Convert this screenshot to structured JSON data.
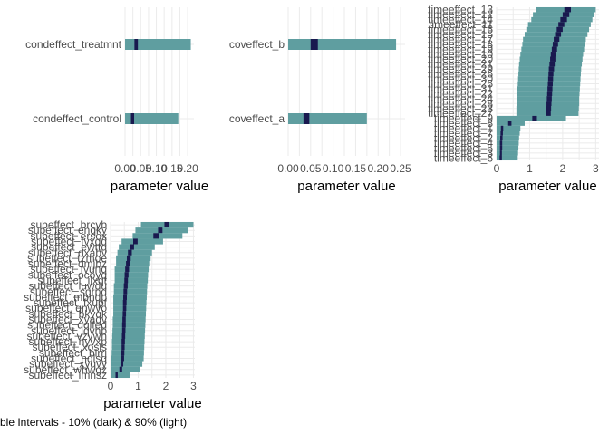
{
  "caption": "ble Intervals - 10% (dark) & 90% (light)",
  "colors": {
    "outer": "#5f9ea0",
    "inner": "#19194f",
    "grid": "#ebebeb",
    "text": "#4d4d4d"
  },
  "chart_data": [
    {
      "type": "interval",
      "panel": "condeffect",
      "xlabel": "parameter value",
      "xlim": [
        0,
        0.22
      ],
      "xticks": [
        0,
        0.05,
        0.1,
        0.15,
        0.2
      ],
      "xtick_labels": [
        "0.00",
        "0.05",
        "0.10",
        "0.15",
        "0.20"
      ],
      "grid": true,
      "items": [
        {
          "label": "condeffect_treatmnt",
          "outer": [
            0.0,
            0.21
          ],
          "inner": [
            0.03,
            0.041
          ],
          "median": 0.036
        },
        {
          "label": "condeffect_control",
          "outer": [
            0.0,
            0.17
          ],
          "inner": [
            0.019,
            0.029
          ],
          "median": 0.024
        }
      ]
    },
    {
      "type": "interval",
      "panel": "coveffect",
      "xlabel": "parameter value",
      "xlim": [
        0,
        0.26
      ],
      "xticks": [
        0,
        0.05,
        0.1,
        0.15,
        0.2,
        0.25
      ],
      "xtick_labels": [
        "0.00",
        "0.05",
        "0.10",
        "0.15",
        "0.20",
        "0.25"
      ],
      "grid": true,
      "items": [
        {
          "label": "coveffect_b",
          "outer": [
            0.0,
            0.24
          ],
          "inner": [
            0.05,
            0.066
          ],
          "median": 0.058
        },
        {
          "label": "coveffect_a",
          "outer": [
            0.0,
            0.175
          ],
          "inner": [
            0.034,
            0.047
          ],
          "median": 0.04
        }
      ]
    },
    {
      "type": "interval",
      "panel": "timeeffect",
      "xlabel": "parameter value",
      "xlim": [
        0,
        3.1
      ],
      "xticks": [
        0,
        1,
        2,
        3
      ],
      "xtick_labels": [
        "0",
        "1",
        "2",
        "3"
      ],
      "grid": true,
      "items": [
        {
          "label": "timeeffect_13",
          "outer": [
            1.2,
            3.0
          ],
          "inner": [
            2.05,
            2.25
          ],
          "median": 2.15
        },
        {
          "label": "timeeffect_12",
          "outer": [
            1.1,
            2.95
          ],
          "inner": [
            2.0,
            2.2
          ],
          "median": 2.1
        },
        {
          "label": "timeeffect_14",
          "outer": [
            1.05,
            2.9
          ],
          "inner": [
            1.93,
            2.13
          ],
          "median": 2.03
        },
        {
          "label": "timeeffect_11",
          "outer": [
            0.95,
            2.85
          ],
          "inner": [
            1.87,
            2.05
          ],
          "median": 1.96
        },
        {
          "label": "timeeffect_16",
          "outer": [
            0.9,
            2.8
          ],
          "inner": [
            1.82,
            2.0
          ],
          "median": 1.91
        },
        {
          "label": "timeeffect_15",
          "outer": [
            0.85,
            2.75
          ],
          "inner": [
            1.77,
            1.95
          ],
          "median": 1.86
        },
        {
          "label": "timeeffect_17",
          "outer": [
            0.8,
            2.7
          ],
          "inner": [
            1.73,
            1.9
          ],
          "median": 1.81
        },
        {
          "label": "timeeffect_18",
          "outer": [
            0.78,
            2.68
          ],
          "inner": [
            1.7,
            1.86
          ],
          "median": 1.78
        },
        {
          "label": "timeeffect_19",
          "outer": [
            0.75,
            2.65
          ],
          "inner": [
            1.67,
            1.83
          ],
          "median": 1.75
        },
        {
          "label": "timeeffect_10",
          "outer": [
            0.72,
            2.62
          ],
          "inner": [
            1.64,
            1.8
          ],
          "median": 1.72
        },
        {
          "label": "timeeffect_20",
          "outer": [
            0.7,
            2.6
          ],
          "inner": [
            1.62,
            1.78
          ],
          "median": 1.7
        },
        {
          "label": "timeeffect_21",
          "outer": [
            0.68,
            2.58
          ],
          "inner": [
            1.6,
            1.76
          ],
          "median": 1.68
        },
        {
          "label": "timeeffect_29",
          "outer": [
            0.67,
            2.56
          ],
          "inner": [
            1.58,
            1.74
          ],
          "median": 1.66
        },
        {
          "label": "timeeffect_26",
          "outer": [
            0.66,
            2.55
          ],
          "inner": [
            1.57,
            1.72
          ],
          "median": 1.65
        },
        {
          "label": "timeeffect_30",
          "outer": [
            0.65,
            2.54
          ],
          "inner": [
            1.56,
            1.71
          ],
          "median": 1.64
        },
        {
          "label": "timeeffect_25",
          "outer": [
            0.64,
            2.53
          ],
          "inner": [
            1.55,
            1.7
          ],
          "median": 1.62
        },
        {
          "label": "timeeffect_31",
          "outer": [
            0.63,
            2.52
          ],
          "inner": [
            1.54,
            1.69
          ],
          "median": 1.61
        },
        {
          "label": "timeeffect_22",
          "outer": [
            0.62,
            2.51
          ],
          "inner": [
            1.53,
            1.68
          ],
          "median": 1.6
        },
        {
          "label": "timeeffect_24",
          "outer": [
            0.62,
            2.5
          ],
          "inner": [
            1.52,
            1.67
          ],
          "median": 1.59
        },
        {
          "label": "timeeffect_28",
          "outer": [
            0.61,
            2.5
          ],
          "inner": [
            1.51,
            1.66
          ],
          "median": 1.58
        },
        {
          "label": "timeeffect_23",
          "outer": [
            0.6,
            2.49
          ],
          "inner": [
            1.5,
            1.65
          ],
          "median": 1.57
        },
        {
          "label": "timeeffect_27",
          "outer": [
            0.6,
            2.48
          ],
          "inner": [
            1.5,
            1.64
          ],
          "median": 1.57
        },
        {
          "label": "timeeffect_9",
          "outer": [
            0.0,
            2.1
          ],
          "inner": [
            1.08,
            1.22
          ],
          "median": 1.15
        },
        {
          "label": "timeeffect_8",
          "outer": [
            0.0,
            0.85
          ],
          "inner": [
            0.35,
            0.45
          ],
          "median": 0.4
        },
        {
          "label": "timeeffect_1",
          "outer": [
            0.0,
            0.72
          ],
          "inner": [
            0.13,
            0.2
          ],
          "median": 0.16
        },
        {
          "label": "timeeffect_7",
          "outer": [
            0.0,
            0.7
          ],
          "inner": [
            0.12,
            0.19
          ],
          "median": 0.15
        },
        {
          "label": "timeeffect_2",
          "outer": [
            0.0,
            0.68
          ],
          "inner": [
            0.11,
            0.18
          ],
          "median": 0.14
        },
        {
          "label": "timeeffect_4",
          "outer": [
            0.0,
            0.67
          ],
          "inner": [
            0.1,
            0.17
          ],
          "median": 0.13
        },
        {
          "label": "timeeffect_5",
          "outer": [
            0.0,
            0.66
          ],
          "inner": [
            0.1,
            0.17
          ],
          "median": 0.13
        },
        {
          "label": "timeeffect_3",
          "outer": [
            0.0,
            0.65
          ],
          "inner": [
            0.1,
            0.16
          ],
          "median": 0.13
        },
        {
          "label": "timeeffect_6",
          "outer": [
            0.0,
            0.64
          ],
          "inner": [
            0.09,
            0.16
          ],
          "median": 0.12
        }
      ]
    },
    {
      "type": "interval",
      "panel": "subeffect",
      "xlabel": "parameter value",
      "xlim": [
        0,
        3.05
      ],
      "xticks": [
        0,
        1,
        2,
        3
      ],
      "xtick_labels": [
        "0",
        "1",
        "2",
        "3"
      ],
      "grid": true,
      "items": [
        {
          "label": "subeffect_brcyb",
          "outer": [
            1.1,
            3.0
          ],
          "inner": [
            1.95,
            2.1
          ],
          "median": 2.02
        },
        {
          "label": "subeffect_enqky",
          "outer": [
            0.9,
            2.8
          ],
          "inner": [
            1.72,
            1.88
          ],
          "median": 1.8
        },
        {
          "label": "subeffect_ersox",
          "outer": [
            0.8,
            2.6
          ],
          "inner": [
            1.55,
            1.75
          ],
          "median": 1.65
        },
        {
          "label": "subeffect_fvxgd",
          "outer": [
            0.4,
            1.9
          ],
          "inner": [
            0.82,
            0.98
          ],
          "median": 0.9
        },
        {
          "label": "subeffect_ewttq",
          "outer": [
            0.3,
            1.6
          ],
          "inner": [
            0.7,
            0.85
          ],
          "median": 0.78
        },
        {
          "label": "subeffect_dxabv",
          "outer": [
            0.25,
            1.5
          ],
          "inner": [
            0.63,
            0.77
          ],
          "median": 0.7
        },
        {
          "label": "subeffect_tzmoe",
          "outer": [
            0.2,
            1.45
          ],
          "inner": [
            0.59,
            0.73
          ],
          "median": 0.66
        },
        {
          "label": "subeffect_dmjbz",
          "outer": [
            0.2,
            1.4
          ],
          "inner": [
            0.56,
            0.7
          ],
          "median": 0.63
        },
        {
          "label": "subeffect_fvunq",
          "outer": [
            0.15,
            1.38
          ],
          "inner": [
            0.53,
            0.67
          ],
          "median": 0.6
        },
        {
          "label": "subeffect_ocoyq",
          "outer": [
            0.15,
            1.36
          ],
          "inner": [
            0.51,
            0.65
          ],
          "median": 0.58
        },
        {
          "label": "subeffect_ilxqt",
          "outer": [
            0.15,
            1.35
          ],
          "inner": [
            0.5,
            0.63
          ],
          "median": 0.56
        },
        {
          "label": "subeffect_luwdu",
          "outer": [
            0.12,
            1.33
          ],
          "inner": [
            0.48,
            0.62
          ],
          "median": 0.55
        },
        {
          "label": "subeffect_sgrpd",
          "outer": [
            0.12,
            1.32
          ],
          "inner": [
            0.47,
            0.6
          ],
          "median": 0.54
        },
        {
          "label": "subeffect_mbndp",
          "outer": [
            0.1,
            1.31
          ],
          "inner": [
            0.46,
            0.59
          ],
          "median": 0.53
        },
        {
          "label": "subeffect_fxupf",
          "outer": [
            0.1,
            1.3
          ],
          "inner": [
            0.45,
            0.58
          ],
          "median": 0.52
        },
        {
          "label": "subeffect_qnwvo",
          "outer": [
            0.1,
            1.29
          ],
          "inner": [
            0.45,
            0.57
          ],
          "median": 0.51
        },
        {
          "label": "subeffect_bkyqk",
          "outer": [
            0.1,
            1.28
          ],
          "inner": [
            0.44,
            0.56
          ],
          "median": 0.5
        },
        {
          "label": "subeffect_xyaqv",
          "outer": [
            0.08,
            1.27
          ],
          "inner": [
            0.43,
            0.55
          ],
          "median": 0.49
        },
        {
          "label": "subeffect_dqlfed",
          "outer": [
            0.08,
            1.26
          ],
          "inner": [
            0.42,
            0.55
          ],
          "median": 0.48
        },
        {
          "label": "subeffect_jqvhb",
          "outer": [
            0.07,
            1.25
          ],
          "inner": [
            0.42,
            0.54
          ],
          "median": 0.48
        },
        {
          "label": "subeffect_vzvwh",
          "outer": [
            0.06,
            1.24
          ],
          "inner": [
            0.41,
            0.53
          ],
          "median": 0.47
        },
        {
          "label": "subeffect_nyvxp",
          "outer": [
            0.05,
            1.23
          ],
          "inner": [
            0.4,
            0.52
          ],
          "median": 0.46
        },
        {
          "label": "subeffect_xosis",
          "outer": [
            0.05,
            1.22
          ],
          "inner": [
            0.4,
            0.51
          ],
          "median": 0.45
        },
        {
          "label": "subeffect_blrrj",
          "outer": [
            0.04,
            1.21
          ],
          "inner": [
            0.39,
            0.5
          ],
          "median": 0.44
        },
        {
          "label": "subeffect_ndlsq",
          "outer": [
            0.03,
            1.2
          ],
          "inner": [
            0.38,
            0.49
          ],
          "median": 0.43
        },
        {
          "label": "subeffect_xyqvy",
          "outer": [
            0.02,
            1.15
          ],
          "inner": [
            0.36,
            0.46
          ],
          "median": 0.41
        },
        {
          "label": "subeffect_whwgz",
          "outer": [
            0.01,
            1.05
          ],
          "inner": [
            0.32,
            0.42
          ],
          "median": 0.37
        },
        {
          "label": "subeffect_imnsz",
          "outer": [
            0.0,
            0.7
          ],
          "inner": [
            0.18,
            0.26
          ],
          "median": 0.22
        }
      ]
    }
  ]
}
